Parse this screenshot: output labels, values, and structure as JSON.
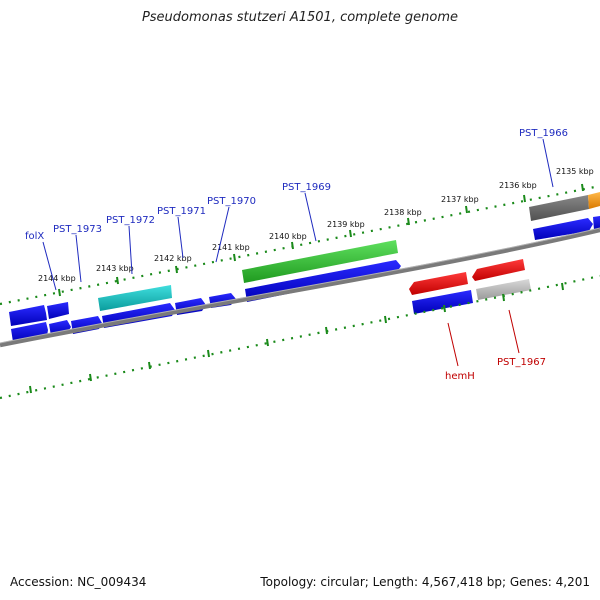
{
  "title": "Pseudomonas stutzeri A1501, complete genome",
  "footer": {
    "accession": "Accession: NC_009434",
    "summary": "Topology: circular; Length: 4,567,418 bp; Genes: 4,201"
  },
  "colors": {
    "blue_gene": "#0a0ae0",
    "green_gene": "#35c435",
    "cyan_gene": "#10c4c4",
    "red_gene": "#e41010",
    "gray_gene": "#bdbdbd",
    "dark_gray_gene": "#6b6b6b",
    "orange_gene": "#f39a12",
    "backbone": "#777777",
    "tick": "#1a8a1a",
    "label_blue": "#1f2bbf",
    "label_red": "#c00000"
  },
  "scale_labels": [
    "2135 kbp",
    "2136 kbp",
    "2137 kbp",
    "2138 kbp",
    "2139 kbp",
    "2140 kbp",
    "2141 kbp",
    "2142 kbp",
    "2143 kbp",
    "2144 kbp"
  ],
  "gene_labels_top": [
    "PST_1966",
    "PST_1969",
    "PST_1970",
    "PST_1971",
    "PST_1972",
    "PST_1973",
    "folX"
  ],
  "gene_labels_bottom": [
    "hemH",
    "PST_1967"
  ]
}
